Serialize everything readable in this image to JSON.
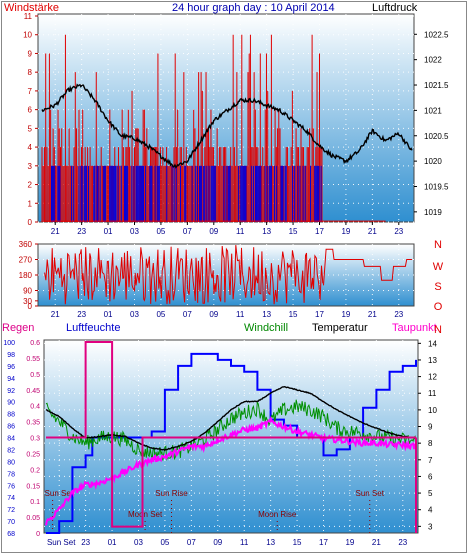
{
  "colors": {
    "wind": "#e00000",
    "gust": "#0000dd",
    "pressure": "#000000",
    "direction": "#e00000",
    "rain": "#e00080",
    "humidity": "#0000ff",
    "windchill": "#009000",
    "temperature": "#000000",
    "dewpoint": "#ff00ff",
    "label_regen": "#dd0088",
    "label_feuchte": "#0000cc",
    "label_windchill": "#008800",
    "label_temp": "#000000",
    "label_taupunkt": "#ff00cc",
    "bg_top": "#ffffff",
    "bg_bottom": "#2f8fd0"
  },
  "chart_data": [
    {
      "type": "line",
      "title": "24 hour graph day : 10 April 2014",
      "left_label": "Windstärke",
      "right_label": "Luftdruck",
      "x_ticks": [
        "21",
        "23",
        "01",
        "03",
        "05",
        "07",
        "09",
        "11",
        "13",
        "15",
        "17",
        "19",
        "21",
        "23"
      ],
      "ylim_left": [
        0,
        11
      ],
      "yticks_left": [
        "0",
        "1",
        "2",
        "3",
        "4",
        "5",
        "6",
        "7",
        "8",
        "9",
        "10",
        "11"
      ],
      "ylim_right": [
        1018.8,
        1022.9
      ],
      "yticks_right": [
        "1019",
        "1019.5",
        "1020",
        "1020.5",
        "1021",
        "1021.5",
        "1022",
        "1022.5"
      ],
      "series": [
        {
          "name": "Windstärke",
          "axis": "left",
          "style": "bars"
        },
        {
          "name": "Luftdruck",
          "axis": "right",
          "x": [
            0,
            1,
            2,
            3,
            4,
            5,
            6,
            7,
            8,
            9,
            10,
            11,
            12,
            13,
            14,
            15,
            16,
            17,
            18,
            19,
            20,
            21,
            22,
            23,
            24,
            25,
            26,
            27,
            28
          ],
          "values": [
            1021.0,
            1021.1,
            1021.4,
            1021.5,
            1021.2,
            1020.8,
            1020.5,
            1020.45,
            1020.3,
            1020.1,
            1019.9,
            1020.0,
            1020.4,
            1020.8,
            1021.0,
            1021.2,
            1021.2,
            1021.1,
            1021.0,
            1020.8,
            1020.6,
            1020.3,
            1020.1,
            1020.0,
            1020.2,
            1020.6,
            1020.4,
            1020.55,
            1020.2
          ]
        }
      ]
    },
    {
      "type": "line",
      "side_labels": [
        "N",
        "W",
        "S",
        "O",
        "N"
      ],
      "ylim": [
        0,
        360
      ],
      "yticks": [
        "0",
        "30",
        "90",
        "180",
        "270",
        "360"
      ],
      "x_ticks": [
        "21",
        "23",
        "01",
        "03",
        "05",
        "07",
        "09",
        "11",
        "13",
        "15",
        "17",
        "19",
        "21",
        "23"
      ],
      "series": [
        {
          "name": "Windrichtung",
          "style": "noisy"
        }
      ]
    },
    {
      "type": "line",
      "header_labels": {
        "regen": "Regen",
        "feuchte": "Luftfeuchte",
        "windchill": "Windchill",
        "temp": "Temperatur",
        "taupunkt": "Taupunkt"
      },
      "x_ticks": [
        "Sun Set",
        "23",
        "01",
        "03",
        "05",
        "07",
        "09",
        "11",
        "13",
        "15",
        "17",
        "19",
        "21",
        "23"
      ],
      "y_rain_ticks": [
        "0",
        "0.05",
        "0.1",
        "0.15",
        "0.2",
        "0.25",
        "0.3",
        "0.35",
        "0.4",
        "0.45",
        "0.5",
        "0.55",
        "0.6"
      ],
      "y_rain_lim": [
        0,
        0.6
      ],
      "y_hum_ticks": [
        "68",
        "70",
        "72",
        "74",
        "76",
        "78",
        "80",
        "82",
        "84",
        "86",
        "88",
        "90",
        "92",
        "94",
        "96",
        "98",
        "100"
      ],
      "y_hum_lim": [
        68,
        100
      ],
      "y_temp_ticks": [
        "3",
        "4",
        "5",
        "6",
        "7",
        "8",
        "9",
        "10",
        "11",
        "12",
        "13",
        "14"
      ],
      "y_temp_lim": [
        2.6,
        14.2
      ],
      "events": [
        {
          "label": "Sun Set",
          "x": 0.5
        },
        {
          "label": "Moon Set",
          "x": 7.5
        },
        {
          "label": "Sun Rise",
          "x": 9.5
        },
        {
          "label": "Moon Rise",
          "x": 17.5
        },
        {
          "label": "Sun Set",
          "x": 24.5
        }
      ],
      "series": [
        {
          "name": "Regen",
          "x": [
            0,
            3,
            3,
            5,
            5,
            7.3,
            7.3,
            28
          ],
          "values": [
            0.3,
            0.3,
            0.6,
            0.6,
            0.02,
            0.02,
            0.3,
            0.3
          ]
        },
        {
          "name": "Luftfeuchte",
          "x": [
            0,
            1,
            2,
            3,
            3.5,
            4,
            5,
            6,
            7,
            8,
            9,
            10,
            11,
            12,
            13,
            14,
            15,
            16,
            17,
            18,
            19,
            20,
            21,
            22,
            23,
            24,
            25,
            26,
            27,
            28
          ],
          "values": [
            68,
            70,
            79,
            81,
            84,
            84,
            84,
            84,
            84,
            85,
            92,
            96,
            98,
            98,
            97,
            96,
            95,
            92,
            87,
            86,
            84,
            84,
            81,
            82,
            84,
            89,
            92,
            95,
            96,
            97
          ]
        },
        {
          "name": "Windchill",
          "x": [
            0,
            1,
            2,
            3,
            4,
            5,
            6,
            7,
            8,
            9,
            10,
            11,
            12,
            13,
            14,
            15,
            16,
            17,
            18,
            19,
            20,
            21,
            22,
            23,
            24,
            25,
            26,
            27,
            28
          ],
          "values": [
            10.0,
            9.3,
            8.4,
            8.0,
            8.3,
            8.4,
            8.2,
            7.6,
            7.4,
            7.4,
            7.5,
            7.8,
            8.2,
            8.8,
            9.5,
            9.8,
            10.1,
            9.3,
            10.0,
            10.2,
            10.0,
            9.6,
            8.9,
            8.7,
            8.6,
            8.4,
            8.3,
            8.2,
            8.1
          ]
        },
        {
          "name": "Temperatur",
          "x": [
            0,
            1,
            2,
            3,
            4,
            5,
            6,
            7,
            8,
            9,
            10,
            11,
            12,
            13,
            14,
            15,
            16,
            17,
            18,
            19,
            20,
            21,
            22,
            23,
            24,
            25,
            26,
            27,
            28
          ],
          "values": [
            10.0,
            9.6,
            8.9,
            8.3,
            8.4,
            8.5,
            8.4,
            8.0,
            7.7,
            7.6,
            7.8,
            8.1,
            8.6,
            9.3,
            10.0,
            10.5,
            10.5,
            11.0,
            11.4,
            11.2,
            11.0,
            10.5,
            10.0,
            9.6,
            9.2,
            8.9,
            8.6,
            8.4,
            8.3
          ]
        },
        {
          "name": "Taupunkt",
          "x": [
            0,
            1,
            2,
            3,
            4,
            5,
            6,
            7,
            8,
            9,
            10,
            11,
            12,
            13,
            14,
            15,
            16,
            17,
            18,
            19,
            20,
            21,
            22,
            23,
            24,
            25,
            26,
            27,
            28
          ],
          "values": [
            3.2,
            4.0,
            5.0,
            5.5,
            5.6,
            5.9,
            6.3,
            6.7,
            7.0,
            7.2,
            7.5,
            7.8,
            7.8,
            8.2,
            8.5,
            8.8,
            8.9,
            9.3,
            9.0,
            8.7,
            8.5,
            8.3,
            8.2,
            8.1,
            8.0,
            8.0,
            7.9,
            7.9,
            7.8
          ]
        }
      ]
    }
  ]
}
